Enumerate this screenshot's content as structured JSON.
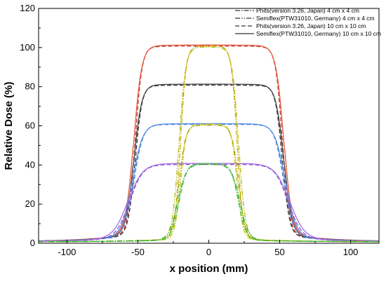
{
  "chart_data": {
    "type": "line",
    "xlabel": "x position (mm)",
    "ylabel": "Relative Dose (%)",
    "xlim": [
      -120,
      120
    ],
    "ylim": [
      0,
      120
    ],
    "xticks": [
      -100,
      -50,
      0,
      50,
      100
    ],
    "yticks": [
      0,
      20,
      40,
      60,
      80,
      100,
      120
    ],
    "grid": false,
    "legend_position": "top-right",
    "legend": [
      {
        "label": "Phits(version 3.26, Japan) 4 cm x 4 cm",
        "dash": "dash-dot"
      },
      {
        "label": "Semiflex(PTW31010, Germany) 4 cm x 4 cm",
        "dash": "dash-dot-dot"
      },
      {
        "label": "Phits(version 3.26, Japan) 10 cm x 10 cm",
        "dash": "dash"
      },
      {
        "label": "Semiflex(PTW31010, Germany) 10 cm x 10 cm",
        "dash": "solid"
      }
    ],
    "series": [
      {
        "color": "#cc3333",
        "style": "dash",
        "level": 100,
        "half_width": 52,
        "tail": 4,
        "edge": 2.4
      },
      {
        "color": "#e05a3a",
        "style": "solid",
        "level": 100.5,
        "half_width": 53,
        "tail": 4,
        "edge": 2.8
      },
      {
        "color": "#333333",
        "style": "dash",
        "level": 80,
        "half_width": 52,
        "tail": 3.5,
        "edge": 2.4
      },
      {
        "color": "#444444",
        "style": "solid",
        "level": 80.5,
        "half_width": 53,
        "tail": 3.5,
        "edge": 2.8
      },
      {
        "color": "#3a7bd5",
        "style": "dash",
        "level": 60,
        "half_width": 53,
        "tail": 3,
        "edge": 3.2
      },
      {
        "color": "#5b8ee6",
        "style": "solid",
        "level": 60.3,
        "half_width": 54,
        "tail": 3,
        "edge": 3.6
      },
      {
        "color": "#8a4fd0",
        "style": "dash",
        "level": 39.5,
        "half_width": 56,
        "tail": 2,
        "edge": 4.5
      },
      {
        "color": "#a46de0",
        "style": "solid",
        "level": 40,
        "half_width": 57,
        "tail": 2,
        "edge": 5.0
      },
      {
        "color": "#c8a800",
        "style": "dash-dot",
        "level": 100,
        "half_width": 20,
        "tail": 1.5,
        "edge": 2.0
      },
      {
        "color": "#b5b800",
        "style": "dash-dot-dot",
        "level": 99.5,
        "half_width": 21,
        "tail": 1.5,
        "edge": 2.3
      },
      {
        "color": "#c9c400",
        "style": "dash-dot",
        "level": 60,
        "half_width": 20,
        "tail": 1.2,
        "edge": 2.0
      },
      {
        "color": "#a6a000",
        "style": "dash-dot-dot",
        "level": 59.5,
        "half_width": 21,
        "tail": 1.2,
        "edge": 2.3
      },
      {
        "color": "#3cc43c",
        "style": "dash-dot",
        "level": 40,
        "half_width": 21,
        "tail": 1,
        "edge": 2.6
      },
      {
        "color": "#2fa82f",
        "style": "dash-dot-dot",
        "level": 39.5,
        "half_width": 22,
        "tail": 1,
        "edge": 2.9
      }
    ]
  }
}
